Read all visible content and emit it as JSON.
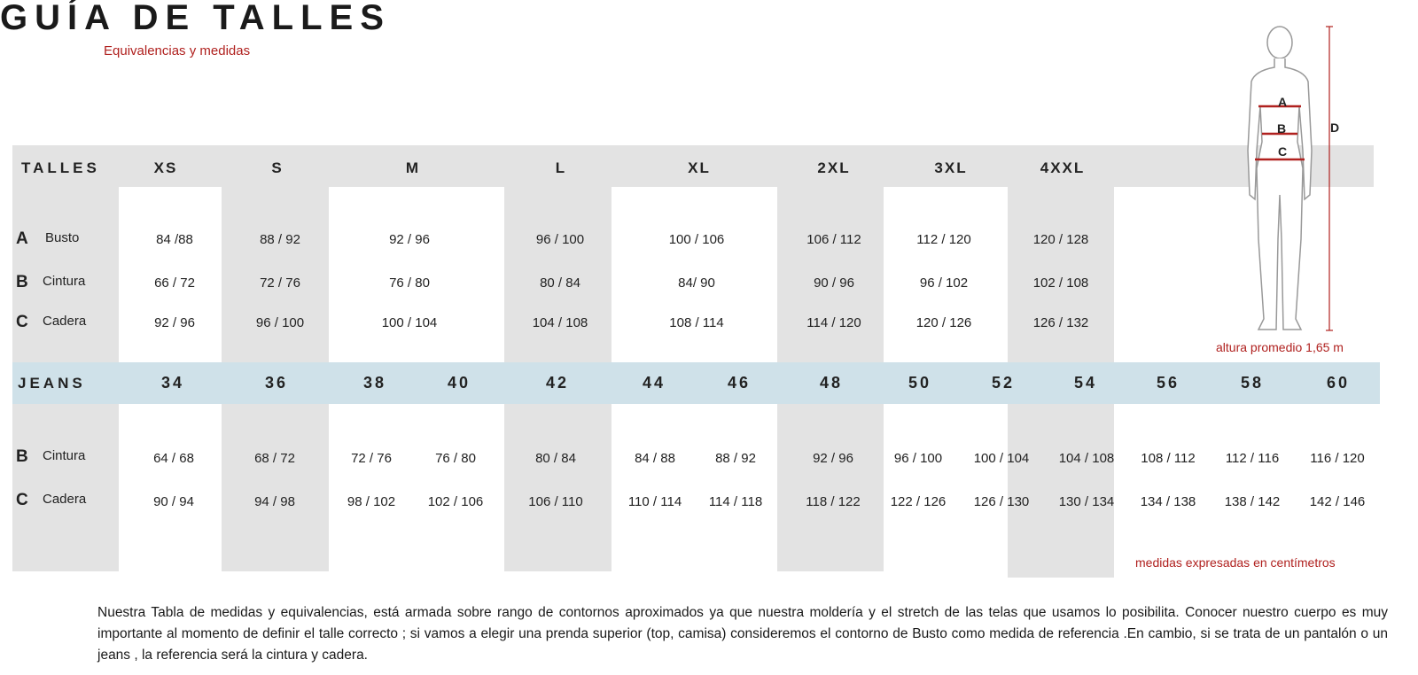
{
  "header": {
    "title": "GUÍA DE TALLES",
    "subtitle": "Equivalencias y medidas"
  },
  "tops": {
    "label": "TALLES",
    "sizes": [
      "XS",
      "S",
      "M",
      "L",
      "XL",
      "2XL",
      "3XL",
      "4XXL"
    ],
    "rows": [
      {
        "letter": "A",
        "name": "Busto",
        "values": [
          "84 /88",
          "88 / 92",
          "92 / 96",
          "96 / 100",
          "100 / 106",
          "106 / 112",
          "112 / 120",
          "120 / 128"
        ]
      },
      {
        "letter": "B",
        "name": "Cintura",
        "values": [
          "66 / 72",
          "72 / 76",
          "76 / 80",
          "80 / 84",
          "84/ 90",
          "90 / 96",
          "96 / 102",
          "102 / 108"
        ]
      },
      {
        "letter": "C",
        "name": "Cadera",
        "values": [
          "92 / 96",
          "96 / 100",
          "100 / 104",
          "104 / 108",
          "108 / 114",
          "114 / 120",
          "120 / 126",
          "126 / 132"
        ]
      }
    ]
  },
  "jeans": {
    "label": "JEANS",
    "sizes": [
      "34",
      "36",
      "38",
      "40",
      "42",
      "44",
      "46",
      "48",
      "50",
      "52",
      "54",
      "56",
      "58",
      "60"
    ],
    "rows": [
      {
        "letter": "B",
        "name": "Cintura",
        "values": [
          "64 / 68",
          "68 / 72",
          "72 / 76",
          "76 / 80",
          "80 / 84",
          "84 / 88",
          "88 / 92",
          "92 / 96",
          "96 / 100",
          "100 / 104",
          "104 / 108",
          "108 / 112",
          "112 / 116",
          "116 / 120"
        ]
      },
      {
        "letter": "C",
        "name": "Cadera",
        "values": [
          "90 / 94",
          "94 / 98",
          "98 / 102",
          "102 / 106",
          "106 / 110",
          "110 / 114",
          "114 / 118",
          "118 / 122",
          "122 / 126",
          "126 / 130",
          "130 / 134",
          "134 / 138",
          "138 / 142",
          "142 / 146"
        ]
      }
    ]
  },
  "figure": {
    "labels": [
      "A",
      "B",
      "C",
      "D"
    ],
    "note": "altura promedio 1,65 m"
  },
  "units_note": "medidas expresadas en centímetros",
  "footer": {
    "text": "Nuestra Tabla de medidas y equivalencias, está armada sobre rango de contornos aproximados ya que nuestra moldería y el stretch de las telas que usamos lo posibilita. Conocer nuestro cuerpo es muy importante al momento de definir el talle correcto ; si vamos a elegir una prenda superior (top, camisa) consideremos el contorno de Busto como medida de referencia .En cambio, si se trata de un pantalón o un jeans , la referencia será la cintura y cadera."
  }
}
